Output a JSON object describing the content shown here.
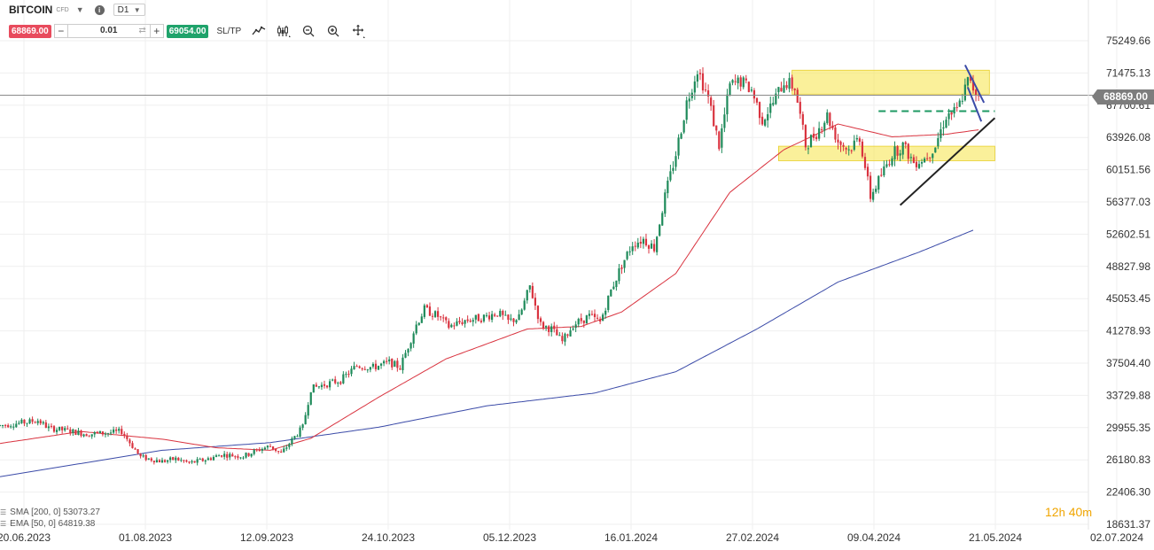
{
  "header": {
    "symbol": "BITCOIN",
    "instrument_type": "CFD",
    "timeframe": "D1"
  },
  "trade_bar": {
    "sell_price": "68869.00",
    "quantity": "0.01",
    "buy_price": "69054.00",
    "sltp_label": "SL/TP"
  },
  "current_price_label": "68869.00",
  "legend": {
    "sma_label": "SMA [200, 0] 53073.27",
    "ema_label": "EMA [50, 0] 64819.38"
  },
  "timer": {
    "hours": "12",
    "hours_unit": "h",
    "minutes": "40",
    "minutes_unit": "m"
  },
  "colors": {
    "bull": "#1e8a5a",
    "bear": "#d9333f",
    "sma": "#3b4ba8",
    "ema": "#d9333f",
    "zone": "#f7e65c",
    "price_line": "#8a8a8a",
    "dashed": "#1e9a63"
  },
  "chart_data": {
    "type": "candlestick",
    "title": "BITCOIN CFD D1",
    "ylim": [
      18631.37,
      77000
    ],
    "y_tick_labels": [
      "75249.66",
      "71475.13",
      "67700.61",
      "63926.08",
      "60151.56",
      "56377.03",
      "52602.51",
      "48827.98",
      "45053.45",
      "41278.93",
      "37504.40",
      "33729.88",
      "29955.35",
      "26180.83",
      "22406.30",
      "18631.37"
    ],
    "x_tick_labels": [
      "20.06.2023",
      "01.08.2023",
      "12.09.2023",
      "24.10.2023",
      "05.12.2023",
      "16.01.2024",
      "27.02.2024",
      "09.04.2024",
      "21.05.2024",
      "02.07.2024"
    ],
    "current_price": 68869.0,
    "close_path": [
      {
        "t": 0,
        "v": 30200
      },
      {
        "t": 5,
        "v": 30400
      },
      {
        "t": 10,
        "v": 30600
      },
      {
        "t": 14,
        "v": 30800
      },
      {
        "t": 18,
        "v": 29900
      },
      {
        "t": 25,
        "v": 29600
      },
      {
        "t": 32,
        "v": 29200
      },
      {
        "t": 38,
        "v": 29300
      },
      {
        "t": 42,
        "v": 29400
      },
      {
        "t": 45,
        "v": 29500
      },
      {
        "t": 52,
        "v": 26500
      },
      {
        "t": 60,
        "v": 26000
      },
      {
        "t": 65,
        "v": 26300
      },
      {
        "t": 70,
        "v": 25800
      },
      {
        "t": 76,
        "v": 26200
      },
      {
        "t": 82,
        "v": 26800
      },
      {
        "t": 90,
        "v": 26600
      },
      {
        "t": 96,
        "v": 27400
      },
      {
        "t": 100,
        "v": 27800
      },
      {
        "t": 104,
        "v": 26900
      },
      {
        "t": 108,
        "v": 28500
      },
      {
        "t": 112,
        "v": 30000
      },
      {
        "t": 115,
        "v": 34500
      },
      {
        "t": 120,
        "v": 35000
      },
      {
        "t": 126,
        "v": 35500
      },
      {
        "t": 132,
        "v": 37200
      },
      {
        "t": 138,
        "v": 37000
      },
      {
        "t": 144,
        "v": 37600
      },
      {
        "t": 148,
        "v": 37000
      },
      {
        "t": 154,
        "v": 42000
      },
      {
        "t": 157,
        "v": 43800
      },
      {
        "t": 162,
        "v": 43000
      },
      {
        "t": 166,
        "v": 41800
      },
      {
        "t": 172,
        "v": 42500
      },
      {
        "t": 178,
        "v": 42800
      },
      {
        "t": 184,
        "v": 43400
      },
      {
        "t": 188,
        "v": 42400
      },
      {
        "t": 192,
        "v": 42800
      },
      {
        "t": 196,
        "v": 46500
      },
      {
        "t": 200,
        "v": 42000
      },
      {
        "t": 204,
        "v": 41500
      },
      {
        "t": 208,
        "v": 40000
      },
      {
        "t": 212,
        "v": 42000
      },
      {
        "t": 218,
        "v": 43000
      },
      {
        "t": 222,
        "v": 42300
      },
      {
        "t": 226,
        "v": 46000
      },
      {
        "t": 230,
        "v": 49000
      },
      {
        "t": 234,
        "v": 51500
      },
      {
        "t": 238,
        "v": 52000
      },
      {
        "t": 242,
        "v": 51000
      },
      {
        "t": 246,
        "v": 57000
      },
      {
        "t": 250,
        "v": 62000
      },
      {
        "t": 254,
        "v": 68000
      },
      {
        "t": 258,
        "v": 72000
      },
      {
        "t": 262,
        "v": 68500
      },
      {
        "t": 266,
        "v": 63000
      },
      {
        "t": 270,
        "v": 70000
      },
      {
        "t": 274,
        "v": 70500
      },
      {
        "t": 278,
        "v": 69500
      },
      {
        "t": 282,
        "v": 66000
      },
      {
        "t": 286,
        "v": 68000
      },
      {
        "t": 290,
        "v": 70500
      },
      {
        "t": 294,
        "v": 69800
      },
      {
        "t": 298,
        "v": 63000
      },
      {
        "t": 302,
        "v": 64500
      },
      {
        "t": 306,
        "v": 66500
      },
      {
        "t": 310,
        "v": 63500
      },
      {
        "t": 314,
        "v": 62500
      },
      {
        "t": 318,
        "v": 64000
      },
      {
        "t": 322,
        "v": 57000
      },
      {
        "t": 326,
        "v": 59500
      },
      {
        "t": 330,
        "v": 62000
      },
      {
        "t": 334,
        "v": 63000
      },
      {
        "t": 338,
        "v": 61000
      },
      {
        "t": 342,
        "v": 61500
      },
      {
        "t": 346,
        "v": 63000
      },
      {
        "t": 350,
        "v": 66500
      },
      {
        "t": 354,
        "v": 67000
      },
      {
        "t": 358,
        "v": 70500
      },
      {
        "t": 362,
        "v": 68869
      }
    ],
    "sma200": [
      {
        "t": 0,
        "v": 24200
      },
      {
        "t": 60,
        "v": 27300
      },
      {
        "t": 100,
        "v": 28200
      },
      {
        "t": 140,
        "v": 30000
      },
      {
        "t": 180,
        "v": 32500
      },
      {
        "t": 220,
        "v": 34000
      },
      {
        "t": 250,
        "v": 36500
      },
      {
        "t": 280,
        "v": 41500
      },
      {
        "t": 310,
        "v": 47000
      },
      {
        "t": 340,
        "v": 50500
      },
      {
        "t": 360,
        "v": 53073.27
      }
    ],
    "ema50": [
      {
        "t": 0,
        "v": 28100
      },
      {
        "t": 30,
        "v": 29500
      },
      {
        "t": 60,
        "v": 28600
      },
      {
        "t": 80,
        "v": 27600
      },
      {
        "t": 100,
        "v": 27300
      },
      {
        "t": 115,
        "v": 28700
      },
      {
        "t": 140,
        "v": 33500
      },
      {
        "t": 165,
        "v": 38000
      },
      {
        "t": 195,
        "v": 41500
      },
      {
        "t": 215,
        "v": 41800
      },
      {
        "t": 230,
        "v": 43500
      },
      {
        "t": 250,
        "v": 48000
      },
      {
        "t": 270,
        "v": 57500
      },
      {
        "t": 290,
        "v": 62500
      },
      {
        "t": 310,
        "v": 65500
      },
      {
        "t": 330,
        "v": 64000
      },
      {
        "t": 350,
        "v": 64300
      },
      {
        "t": 362,
        "v": 64819.38
      }
    ],
    "zones": [
      {
        "name": "resistance-zone",
        "t0": 293,
        "t1": 366,
        "v0": 69000,
        "v1": 71800
      },
      {
        "name": "support-zone",
        "t0": 288,
        "t1": 368,
        "v0": 61200,
        "v1": 62900
      }
    ],
    "dashed_level": {
      "t0": 325,
      "t1": 368,
      "v": 67000
    },
    "trendlines": [
      {
        "name": "ascending-support-trendline",
        "t0": 333,
        "v0": 56000,
        "t1": 368,
        "v1": 66200,
        "color": "#222222"
      },
      {
        "name": "descending-wedge-upper",
        "t0": 357,
        "v0": 72400,
        "t1": 364,
        "v1": 68000,
        "color": "#3b4ba8"
      },
      {
        "name": "descending-wedge-lower",
        "t0": 358,
        "v0": 69800,
        "t1": 363,
        "v1": 65800,
        "color": "#3b4ba8"
      }
    ]
  }
}
